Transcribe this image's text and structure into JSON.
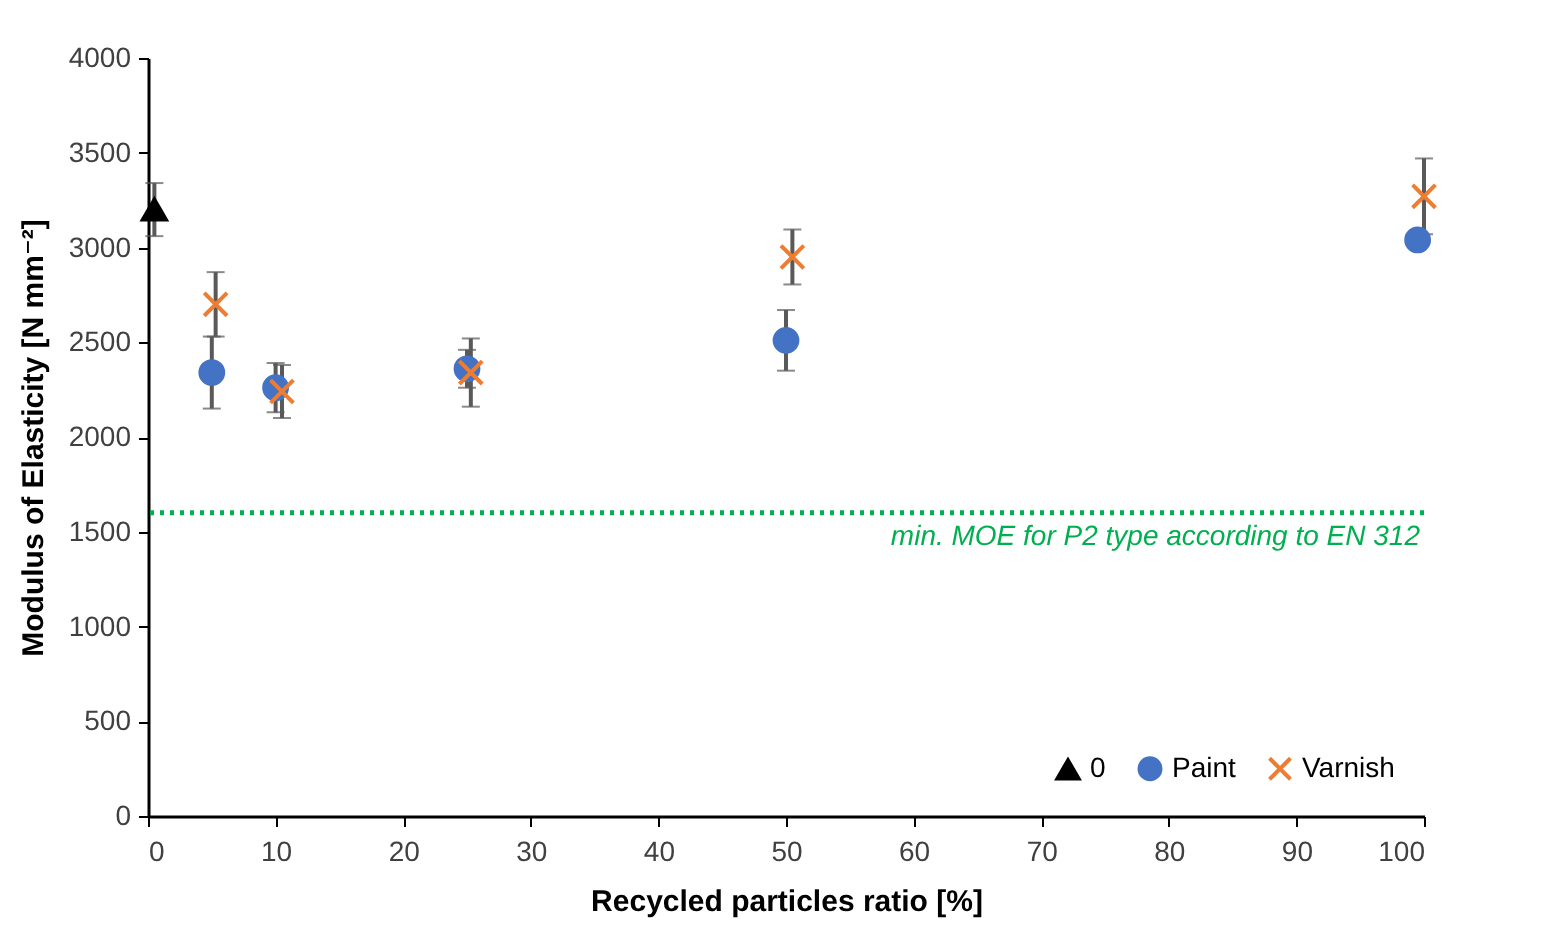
{
  "chart_data": {
    "type": "scatter",
    "xlabel": "Recycled particles ratio [%]",
    "ylabel": "Modulus of Elasticity [N mm⁻²]",
    "xlim": [
      0,
      100
    ],
    "xticks": [
      0,
      10,
      20,
      30,
      40,
      50,
      60,
      70,
      80,
      90,
      100
    ],
    "ylim": [
      0,
      4000
    ],
    "yticks": [
      0,
      500,
      1000,
      1500,
      2000,
      2500,
      3000,
      3500,
      4000
    ],
    "grid": false,
    "legend": "bottom right",
    "series": [
      {
        "name": "0",
        "color": "#000000",
        "marker": "triangle",
        "x": [
          0.5
        ],
        "values": [
          3200
        ],
        "errors": [
          140
        ]
      },
      {
        "name": "Paint",
        "color": "#4472c4",
        "marker": "circle",
        "x": [
          5,
          10,
          25,
          50,
          99.5
        ],
        "values": [
          2340,
          2260,
          2360,
          2510,
          3040
        ],
        "errors": [
          190,
          130,
          100,
          160,
          null
        ]
      },
      {
        "name": "Varnish",
        "color": "#ed7d31",
        "marker": "cross",
        "x": [
          5.3,
          10.5,
          25.3,
          50.5,
          100
        ],
        "values": [
          2700,
          2240,
          2340,
          2950,
          3270
        ],
        "errors": [
          170,
          140,
          180,
          145,
          200
        ]
      }
    ],
    "ref_lines": [
      {
        "axis": "y",
        "value": 1600,
        "label": "min. MOE for P2 type according to EN 312",
        "color": "#00b050",
        "line_style": "dotted"
      }
    ]
  }
}
